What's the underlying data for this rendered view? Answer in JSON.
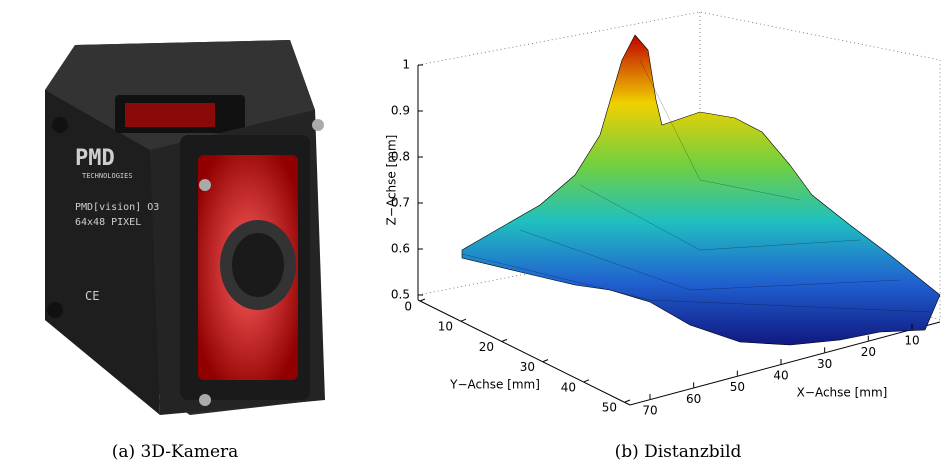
{
  "panel_a": {
    "caption": "(a) 3D-Kamera",
    "brand": "PMD",
    "brand_sub": "TECHNOLOGIES",
    "model": "PMD[vision] O3",
    "resolution": "64x48 PIXEL",
    "mark": "CE"
  },
  "panel_b": {
    "caption": "(b) Distanzbild",
    "x_label": "X−Achse [mm]",
    "y_label": "Y−Achse [mm]",
    "z_label": "Z−Achse [mm]",
    "x_ticks": [
      70,
      60,
      50,
      40,
      30,
      20,
      10
    ],
    "y_ticks": [
      0,
      10,
      20,
      30,
      40,
      50
    ],
    "z_ticks": [
      0.5,
      0.6,
      0.7,
      0.8,
      0.9,
      1
    ]
  }
}
